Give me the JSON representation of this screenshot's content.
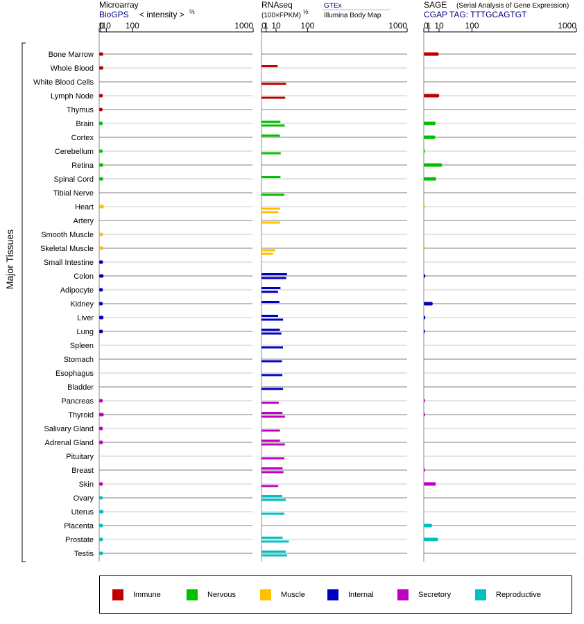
{
  "header": {
    "micro_title": "Microarray",
    "micro_source": "BioGPS",
    "micro_intensity": "< intensity >",
    "micro_exp": "⅔",
    "rna_title": "RNAseq",
    "rna_unit": "(100×FPKM)",
    "rna_exp": "½",
    "rna_gtex": "GTEx",
    "rna_illumina": "Illumina Body Map",
    "sage_title": "SAGE",
    "sage_subtitle": "(Serial Analysis of Gene Expression)",
    "sage_tag": "CGAP TAG: TTTGCAGTGT",
    "y_label": "Major Tissues"
  },
  "colors": {
    "Immune": "#c00000",
    "Nervous": "#00c000",
    "Muscle": "#ffc000",
    "Internal": "#0000c0",
    "Secretory": "#c000c0",
    "Reproductive": "#00c0c0",
    "header_blue": "#00007f"
  },
  "legend": [
    {
      "label": "Immune",
      "color": "#c00000"
    },
    {
      "label": "Nervous",
      "color": "#00c000"
    },
    {
      "label": "Muscle",
      "color": "#ffc000"
    },
    {
      "label": "Internal",
      "color": "#0000c0"
    },
    {
      "label": "Secretory",
      "color": "#c000c0"
    },
    {
      "label": "Reproductive",
      "color": "#00c0c0"
    }
  ],
  "chart_data": {
    "type": "bar",
    "orientation": "horizontal",
    "x_scale": "power (Microarray: ^2/3, RNAseq: ^1/2, SAGE: ^1/2)",
    "x_ticks": [
      "0",
      "1",
      "10",
      "100",
      "1000"
    ],
    "xlim": [
      0,
      1000
    ],
    "categories": [
      "Bone Marrow",
      "Whole Blood",
      "White Blood Cells",
      "Lymph Node",
      "Thymus",
      "Brain",
      "Cortex",
      "Cerebellum",
      "Retina",
      "Spinal Cord",
      "Tibial Nerve",
      "Heart",
      "Artery",
      "Smooth Muscle",
      "Skeletal Muscle",
      "Small Intestine",
      "Colon",
      "Adipocyte",
      "Kidney",
      "Liver",
      "Lung",
      "Spleen",
      "Stomach",
      "Esophagus",
      "Bladder",
      "Pancreas",
      "Thyroid",
      "Salivary Gland",
      "Adrenal Gland",
      "Pituitary",
      "Breast",
      "Skin",
      "Ovary",
      "Uterus",
      "Placenta",
      "Prostate",
      "Testis"
    ],
    "groups": [
      "Immune",
      "Immune",
      "Immune",
      "Immune",
      "Immune",
      "Nervous",
      "Nervous",
      "Nervous",
      "Nervous",
      "Nervous",
      "Nervous",
      "Muscle",
      "Muscle",
      "Muscle",
      "Muscle",
      "Internal",
      "Internal",
      "Internal",
      "Internal",
      "Internal",
      "Internal",
      "Internal",
      "Internal",
      "Internal",
      "Internal",
      "Secretory",
      "Secretory",
      "Secretory",
      "Secretory",
      "Secretory",
      "Secretory",
      "Secretory",
      "Reproductive",
      "Reproductive",
      "Reproductive",
      "Reproductive",
      "Reproductive"
    ],
    "microarray": [
      4.1,
      4.3,
      null,
      3.5,
      3.2,
      3.3,
      null,
      3.3,
      4.2,
      4.2,
      null,
      5.1,
      null,
      3.9,
      4.2,
      3.9,
      4.7,
      3.6,
      3.4,
      4.6,
      3.6,
      null,
      null,
      null,
      null,
      3.4,
      5.0,
      3.6,
      3.6,
      null,
      null,
      3.6,
      3.3,
      4.6,
      3.6,
      3.8,
      3.8
    ],
    "rnaseq_gtex": [
      null,
      12.4,
      null,
      null,
      null,
      16.8,
      15.9,
      null,
      null,
      17.0,
      null,
      null,
      null,
      null,
      null,
      null,
      30.7,
      17.0,
      15.1,
      13.0,
      15.9,
      null,
      null,
      null,
      null,
      null,
      20.8,
      null,
      16.0,
      null,
      21.0,
      null,
      20.3,
      null,
      null,
      21.0,
      27.5
    ],
    "rnaseq_ibm": [
      null,
      null,
      28.4,
      26.5,
      null,
      25.6,
      null,
      17.5,
      null,
      null,
      24.6,
      16.4,
      16.0,
      null,
      9.0,
      null,
      28.8,
      12.9,
      null,
      22.0,
      18.7,
      21.8,
      19.7,
      20.5,
      22.0,
      14.0,
      26.0,
      16.0,
      25.8,
      24.7,
      22.8,
      13.3,
      27.9,
      24.6,
      null,
      35.3,
      31.2
    ],
    "rnaseq_extra": [
      null,
      null,
      null,
      null,
      null,
      null,
      null,
      null,
      null,
      null,
      null,
      13.5,
      null,
      null,
      6.5,
      null,
      null,
      null,
      null,
      null,
      null,
      null,
      null,
      null,
      null,
      null,
      null,
      null,
      null,
      null,
      null,
      null,
      null,
      null,
      null,
      null,
      null
    ],
    "sage": [
      9.5,
      null,
      null,
      10.2,
      null,
      5.9,
      5.6,
      0.02,
      14.4,
      6.6,
      null,
      0.02,
      null,
      null,
      0.02,
      null,
      0.1,
      null,
      3.4,
      0.1,
      0.05,
      null,
      null,
      null,
      null,
      0.06,
      0.06,
      null,
      null,
      null,
      0.06,
      6.2,
      null,
      null,
      2.9,
      8.7,
      null
    ]
  }
}
